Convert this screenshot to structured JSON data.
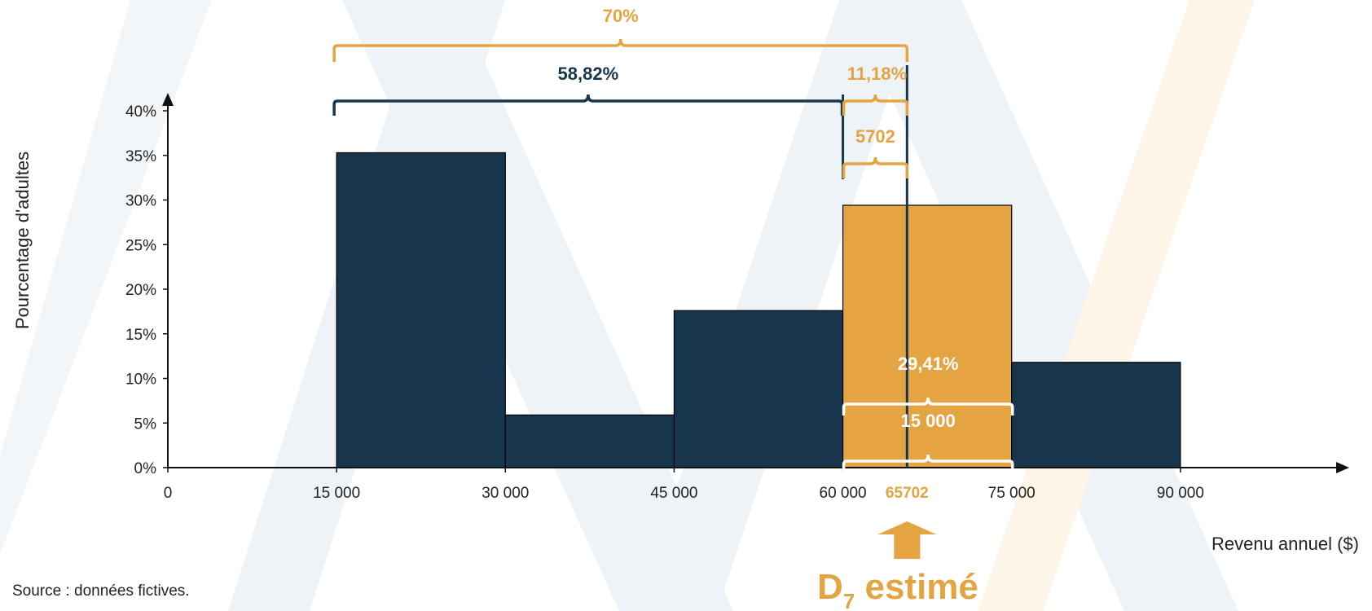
{
  "colors": {
    "navy": "#17364e",
    "gold": "#e3a441",
    "white": "#ffffff",
    "watermark_blue": "#e9f0f5",
    "watermark_gold": "#fdf4e4"
  },
  "chart_data": {
    "type": "bar",
    "bins": [
      {
        "from": 15000,
        "to": 30000,
        "value": 35.3,
        "highlight": false
      },
      {
        "from": 30000,
        "to": 45000,
        "value": 5.9,
        "highlight": false
      },
      {
        "from": 45000,
        "to": 60000,
        "value": 17.6,
        "highlight": false
      },
      {
        "from": 60000,
        "to": 75000,
        "value": 29.41,
        "highlight": true
      },
      {
        "from": 75000,
        "to": 90000,
        "value": 11.8,
        "highlight": false
      }
    ],
    "xlim": [
      0,
      105000
    ],
    "ylim": [
      0,
      40
    ],
    "x_ticks": [
      {
        "value": 0,
        "label": "0"
      },
      {
        "value": 15000,
        "label": "15 000"
      },
      {
        "value": 30000,
        "label": "30 000"
      },
      {
        "value": 45000,
        "label": "45 000"
      },
      {
        "value": 60000,
        "label": "60 000"
      },
      {
        "value": 75000,
        "label": "75 000"
      },
      {
        "value": 90000,
        "label": "90 000"
      }
    ],
    "y_ticks": [
      {
        "value": 0,
        "label": "0%"
      },
      {
        "value": 5,
        "label": "5%"
      },
      {
        "value": 10,
        "label": "10%"
      },
      {
        "value": 15,
        "label": "15%"
      },
      {
        "value": 20,
        "label": "20%"
      },
      {
        "value": 25,
        "label": "25%"
      },
      {
        "value": 30,
        "label": "30%"
      },
      {
        "value": 35,
        "label": "35%"
      },
      {
        "value": 40,
        "label": "40%"
      }
    ],
    "xlabel": "Revenu annuel ($)",
    "ylabel": "Pourcentage d'adultes",
    "estimate": {
      "value": 65702,
      "label": "65702"
    },
    "annotations": {
      "total_percent": "70%",
      "below_class_percent": "58,82%",
      "within_class_percent": "11,18%",
      "within_class_width": "5702",
      "class_percent": "29,41%",
      "class_width": "15 000"
    }
  },
  "source": "Source : données fictives.",
  "result_label": {
    "main": "D",
    "subscript": "7",
    "suffix": " estimé"
  }
}
